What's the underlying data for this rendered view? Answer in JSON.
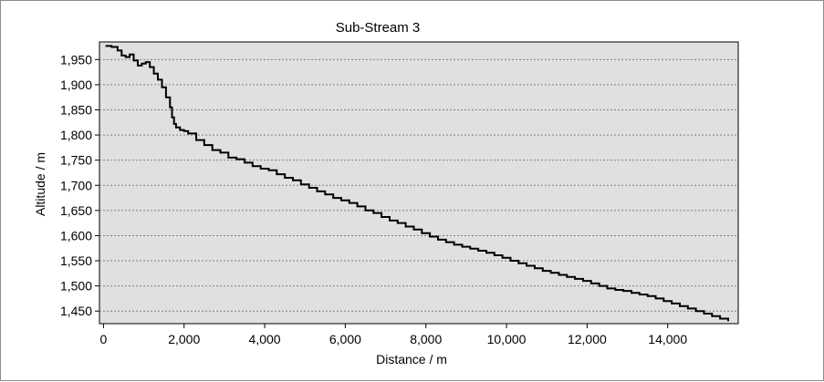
{
  "chart_data": {
    "type": "line",
    "title": "Sub-Stream 3",
    "xlabel": "Distance / m",
    "ylabel": "Altitude / m",
    "xlim": [
      -100,
      15750
    ],
    "ylim": [
      1425,
      1985
    ],
    "x_ticks": [
      0,
      2000,
      4000,
      6000,
      8000,
      10000,
      12000,
      14000
    ],
    "x_tick_labels": [
      "0",
      "2,000",
      "4,000",
      "6,000",
      "8,000",
      "10,000",
      "12,000",
      "14,000"
    ],
    "y_ticks": [
      1450,
      1500,
      1550,
      1600,
      1650,
      1700,
      1750,
      1800,
      1850,
      1900,
      1950
    ],
    "y_tick_labels": [
      "1,450",
      "1,500",
      "1,550",
      "1,600",
      "1,650",
      "1,700",
      "1,750",
      "1,800",
      "1,850",
      "1,900",
      "1,950"
    ],
    "grid": "horizontal-dotted",
    "legend": "none",
    "colors": {
      "plot_bg": "#e0e0e0",
      "line": "#000000",
      "grid": "#808080"
    },
    "series": [
      {
        "x": [
          50,
          200,
          350,
          450,
          550,
          650,
          750,
          850,
          950,
          1050,
          1150,
          1250,
          1350,
          1450,
          1550,
          1650,
          1700,
          1750,
          1800,
          1900,
          2000,
          2100,
          2300,
          2500,
          2700,
          2900,
          3100,
          3300,
          3500,
          3700,
          3900,
          4100,
          4300,
          4500,
          4700,
          4900,
          5100,
          5300,
          5500,
          5700,
          5900,
          6100,
          6300,
          6500,
          6700,
          6900,
          7100,
          7300,
          7500,
          7700,
          7900,
          8100,
          8300,
          8500,
          8700,
          8900,
          9100,
          9300,
          9500,
          9700,
          9900,
          10100,
          10300,
          10500,
          10700,
          10900,
          11100,
          11300,
          11500,
          11700,
          11900,
          12100,
          12300,
          12500,
          12700,
          12900,
          13100,
          13300,
          13500,
          13700,
          13900,
          14100,
          14300,
          14500,
          14700,
          14900,
          15100,
          15300,
          15500
        ],
        "y": [
          1977,
          1975,
          1968,
          1958,
          1955,
          1960,
          1948,
          1938,
          1942,
          1945,
          1935,
          1922,
          1910,
          1895,
          1875,
          1855,
          1835,
          1822,
          1815,
          1810,
          1808,
          1803,
          1790,
          1780,
          1770,
          1765,
          1755,
          1752,
          1745,
          1738,
          1733,
          1730,
          1722,
          1715,
          1710,
          1702,
          1695,
          1688,
          1682,
          1675,
          1670,
          1665,
          1658,
          1650,
          1645,
          1637,
          1630,
          1625,
          1618,
          1612,
          1605,
          1598,
          1592,
          1587,
          1582,
          1578,
          1574,
          1570,
          1566,
          1561,
          1556,
          1550,
          1545,
          1540,
          1535,
          1530,
          1526,
          1522,
          1518,
          1514,
          1510,
          1505,
          1500,
          1495,
          1492,
          1490,
          1486,
          1483,
          1480,
          1475,
          1470,
          1465,
          1460,
          1455,
          1450,
          1445,
          1440,
          1435,
          1430
        ]
      }
    ]
  }
}
